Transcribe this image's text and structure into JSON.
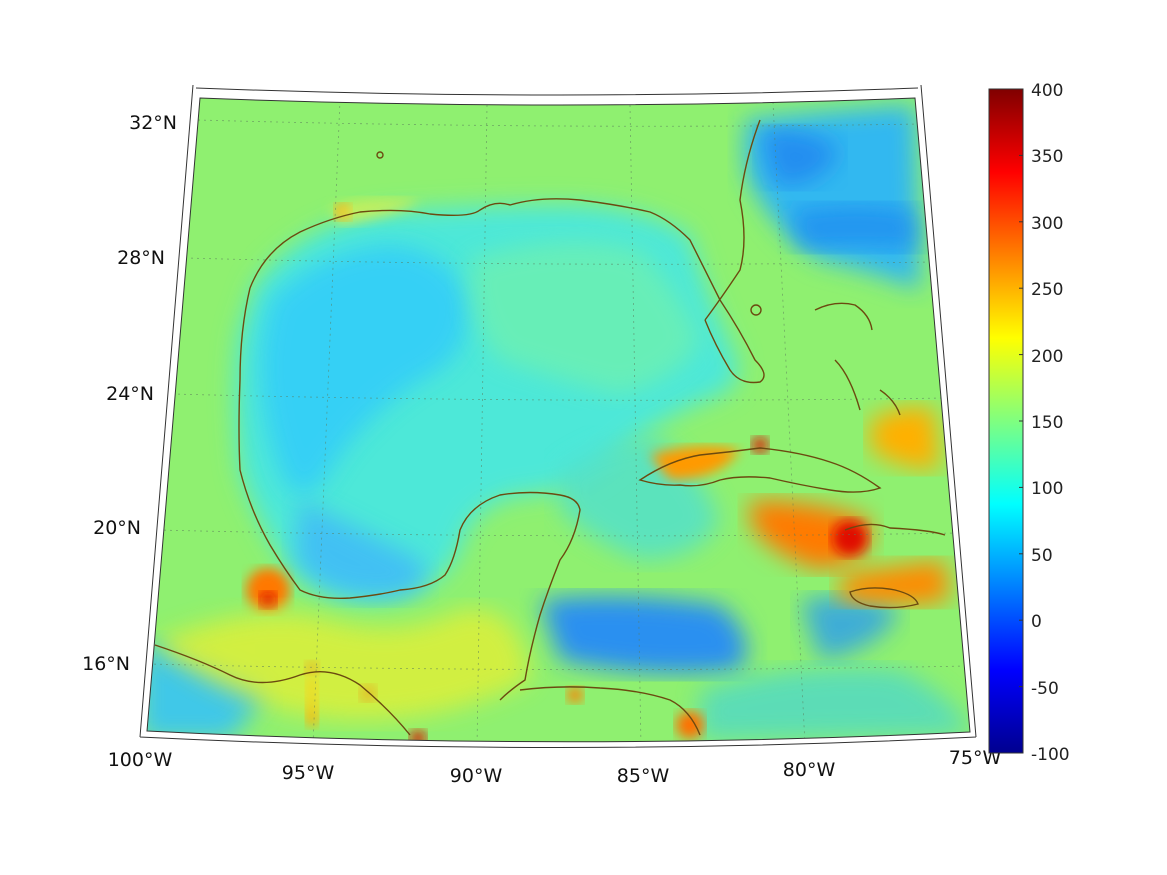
{
  "map": {
    "lon_labels": [
      "100°W",
      "95°W",
      "90°W",
      "85°W",
      "80°W",
      "75°W"
    ],
    "lat_labels": [
      "32°N",
      "28°N",
      "24°N",
      "20°N",
      "16°N"
    ],
    "region": "Gulf of Mexico and Caribbean",
    "coastline_color": "#6b4a10"
  },
  "colorbar": {
    "labels": [
      "400",
      "350",
      "300",
      "250",
      "200",
      "150",
      "100",
      "50",
      "0",
      "-50",
      "-100"
    ],
    "min": -100,
    "max": 400,
    "colormap": "jet"
  }
}
